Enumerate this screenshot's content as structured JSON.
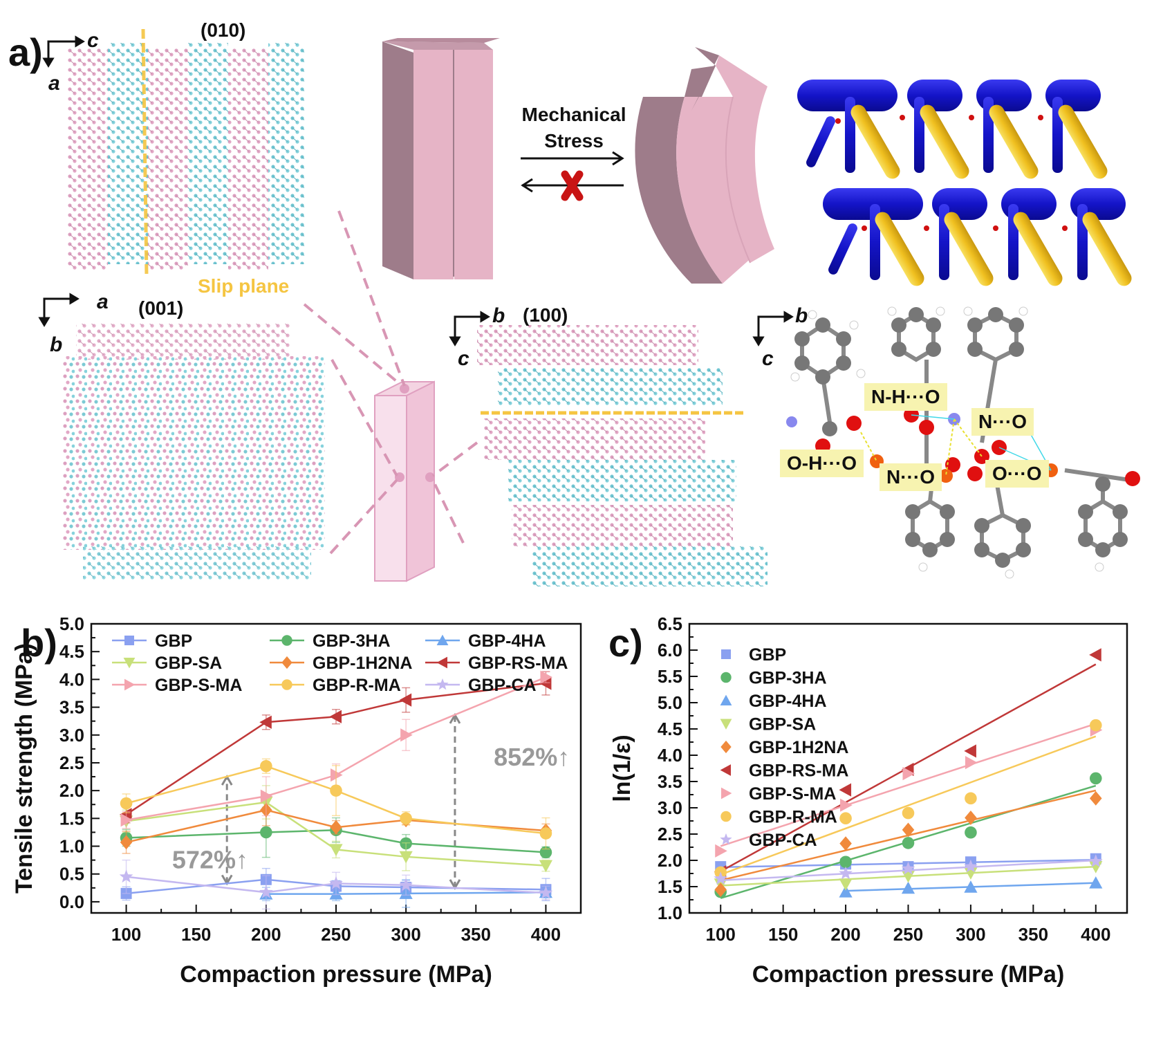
{
  "panel_a": {
    "letter": "a)",
    "view_010": {
      "plane": "(010)",
      "axis_h": "c",
      "axis_v": "a"
    },
    "slip_plane_label": "Slip plane",
    "view_001": {
      "plane": "(001)",
      "axis_h": "a",
      "axis_v": "b"
    },
    "view_100": {
      "plane": "(100)",
      "axis_h": "b",
      "axis_v": "c"
    },
    "view_hbond": {
      "axis_h": "b",
      "axis_v": "c"
    },
    "stress_label_line1": "Mechanical",
    "stress_label_line2": "Stress",
    "hbond_labels": [
      "N-H···O",
      "N···O",
      "O-H···O",
      "N···O",
      "O···O"
    ],
    "colors": {
      "pink_layer": "#e6a8c8",
      "cyan_layer": "#7fcfd8",
      "slip_plane": "#f5c542",
      "crystal_front": "#e6b4c6",
      "crystal_side": "#9e7c8a",
      "energy_blue": "#1a1ad0",
      "energy_yellow": "#f0c020",
      "cross_red": "#c81414"
    }
  },
  "chart_data": [
    {
      "id": "b",
      "letter": "b)",
      "type": "line",
      "title": "",
      "xlabel": "Compaction pressure (MPa)",
      "ylabel": "Tensile strength (MPa)",
      "xlim": [
        75,
        425
      ],
      "ylim": [
        -0.2,
        5.0
      ],
      "xticks": [
        100,
        150,
        200,
        250,
        300,
        350,
        400
      ],
      "yticks": [
        0.0,
        0.5,
        1.0,
        1.5,
        2.0,
        2.5,
        3.0,
        3.5,
        4.0,
        4.5,
        5.0
      ],
      "grid": false,
      "legend": "top, 3 columns",
      "series": [
        {
          "name": "GBP",
          "color": "#8aa0f0",
          "marker": "square",
          "x": [
            100,
            200,
            250,
            300,
            400
          ],
          "y": [
            0.15,
            0.4,
            0.28,
            0.26,
            0.22
          ],
          "err": [
            0.12,
            0.2,
            0.1,
            0.12,
            0.2
          ]
        },
        {
          "name": "GBP-3HA",
          "color": "#5cb56c",
          "marker": "circle",
          "x": [
            100,
            200,
            250,
            300,
            400
          ],
          "y": [
            1.15,
            1.25,
            1.29,
            1.05,
            0.89
          ],
          "err": [
            0.15,
            0.45,
            0.22,
            0.16,
            0.1
          ]
        },
        {
          "name": "GBP-4HA",
          "color": "#6fa6ee",
          "marker": "triangle-up",
          "x": [
            200,
            250,
            300,
            400
          ],
          "y": [
            0.14,
            0.14,
            0.15,
            0.17
          ],
          "err": [
            0.12,
            0.12,
            0.25,
            0.1
          ]
        },
        {
          "name": "GBP-SA",
          "color": "#c8e07a",
          "marker": "triangle-down",
          "x": [
            100,
            200,
            250,
            300,
            400
          ],
          "y": [
            1.45,
            1.79,
            0.94,
            0.81,
            0.65
          ],
          "err": [
            0.2,
            0.3,
            0.15,
            0.25,
            0.1
          ]
        },
        {
          "name": "GBP-1H2NA",
          "color": "#f08a3c",
          "marker": "diamond",
          "x": [
            100,
            200,
            250,
            300,
            400
          ],
          "y": [
            1.07,
            1.65,
            1.34,
            1.47,
            1.28
          ],
          "err": [
            0.2,
            0.28,
            0.12,
            0.08,
            0.12
          ]
        },
        {
          "name": "GBP-RS-MA",
          "color": "#c03838",
          "marker": "triangle-left",
          "x": [
            100,
            200,
            250,
            300,
            400
          ],
          "y": [
            1.57,
            3.23,
            3.33,
            3.63,
            3.93
          ],
          "err": [
            0.15,
            0.13,
            0.13,
            0.22,
            0.21
          ]
        },
        {
          "name": "GBP-S-MA",
          "color": "#f4a4ae",
          "marker": "triangle-right",
          "x": [
            100,
            200,
            250,
            300,
            400
          ],
          "y": [
            1.47,
            1.9,
            2.28,
            3.0,
            4.04
          ],
          "err": [
            0.15,
            0.35,
            0.2,
            0.28,
            0.1
          ]
        },
        {
          "name": "GBP-R-MA",
          "color": "#f7c95a",
          "marker": "circle",
          "x": [
            100,
            200,
            250,
            300,
            400
          ],
          "y": [
            1.77,
            2.44,
            2.0,
            1.5,
            1.23
          ],
          "err": [
            0.17,
            0.13,
            0.45,
            0.12,
            0.28
          ]
        },
        {
          "name": "GBP-CA",
          "color": "#c4b8f0",
          "marker": "star",
          "x": [
            100,
            200,
            250,
            300,
            400
          ],
          "y": [
            0.45,
            0.17,
            0.33,
            0.3,
            0.16
          ],
          "err": [
            0.3,
            0.3,
            0.2,
            0.18,
            0.12
          ]
        }
      ],
      "annotations": [
        {
          "text": "572%↑",
          "x": 160,
          "y": 0.6,
          "arrow_x": 172,
          "arrow_from": 0.33,
          "arrow_to": 2.25
        },
        {
          "text": "852%↑",
          "x": 390,
          "y": 2.45,
          "arrow_x": 335,
          "arrow_from": 0.25,
          "arrow_to": 3.36
        }
      ]
    },
    {
      "id": "c",
      "letter": "c)",
      "type": "scatter",
      "title": "",
      "xlabel": "Compaction pressure (MPa)",
      "ylabel": "ln(1/ε)",
      "xlim": [
        75,
        425
      ],
      "ylim": [
        1.0,
        6.5
      ],
      "xticks": [
        100,
        150,
        200,
        250,
        300,
        350,
        400
      ],
      "yticks": [
        1.0,
        1.5,
        2.0,
        2.5,
        3.0,
        3.5,
        4.0,
        4.5,
        5.0,
        5.5,
        6.0,
        6.5
      ],
      "grid": false,
      "legend": "top-left, 1 column",
      "series": [
        {
          "name": "GBP",
          "color": "#8aa0f0",
          "marker": "square",
          "x": [
            100,
            200,
            250,
            300,
            400
          ],
          "y": [
            1.88,
            1.93,
            1.88,
            1.97,
            2.03
          ],
          "fit": [
            1.87,
            2.01
          ]
        },
        {
          "name": "GBP-3HA",
          "color": "#5cb56c",
          "marker": "circle",
          "x": [
            100,
            200,
            250,
            300,
            400
          ],
          "y": [
            1.4,
            1.97,
            2.33,
            2.53,
            3.56
          ],
          "fit": [
            1.28,
            3.42
          ]
        },
        {
          "name": "GBP-4HA",
          "color": "#6fa6ee",
          "marker": "triangle-up",
          "x": [
            200,
            250,
            300,
            400
          ],
          "y": [
            1.4,
            1.47,
            1.49,
            1.57
          ],
          "fit_x": [
            200,
            400
          ],
          "fit": [
            1.42,
            1.57
          ]
        },
        {
          "name": "GBP-SA",
          "color": "#c8e07a",
          "marker": "triangle-down",
          "x": [
            100,
            200,
            250,
            300,
            400
          ],
          "y": [
            1.55,
            1.55,
            1.7,
            1.76,
            1.88
          ],
          "fit": [
            1.52,
            1.88
          ]
        },
        {
          "name": "GBP-1H2NA",
          "color": "#f08a3c",
          "marker": "diamond",
          "x": [
            100,
            200,
            250,
            300,
            400
          ],
          "y": [
            1.44,
            2.32,
            2.58,
            2.81,
            3.18
          ],
          "fit": [
            1.62,
            3.33
          ]
        },
        {
          "name": "GBP-RS-MA",
          "color": "#c03838",
          "marker": "triangle-left",
          "x": [
            100,
            200,
            250,
            300,
            400
          ],
          "y": [
            1.78,
            3.34,
            3.73,
            4.08,
            5.91
          ],
          "fit": [
            1.79,
            5.73
          ]
        },
        {
          "name": "GBP-S-MA",
          "color": "#f4a4ae",
          "marker": "triangle-right",
          "x": [
            100,
            200,
            250,
            300,
            400
          ],
          "y": [
            2.18,
            3.05,
            3.65,
            3.86,
            4.48
          ],
          "fit": [
            2.27,
            4.6
          ]
        },
        {
          "name": "GBP-R-MA",
          "color": "#f7c95a",
          "marker": "circle",
          "x": [
            100,
            200,
            250,
            300,
            400
          ],
          "y": [
            1.77,
            2.8,
            2.9,
            3.18,
            4.57
          ],
          "fit": [
            1.73,
            4.36
          ]
        },
        {
          "name": "GBP-CA",
          "color": "#c4b8f0",
          "marker": "star",
          "x": [
            100,
            200,
            250,
            300,
            400
          ],
          "y": [
            1.65,
            1.75,
            1.84,
            1.88,
            1.98
          ],
          "fit": [
            1.62,
            2.0
          ]
        }
      ]
    }
  ]
}
